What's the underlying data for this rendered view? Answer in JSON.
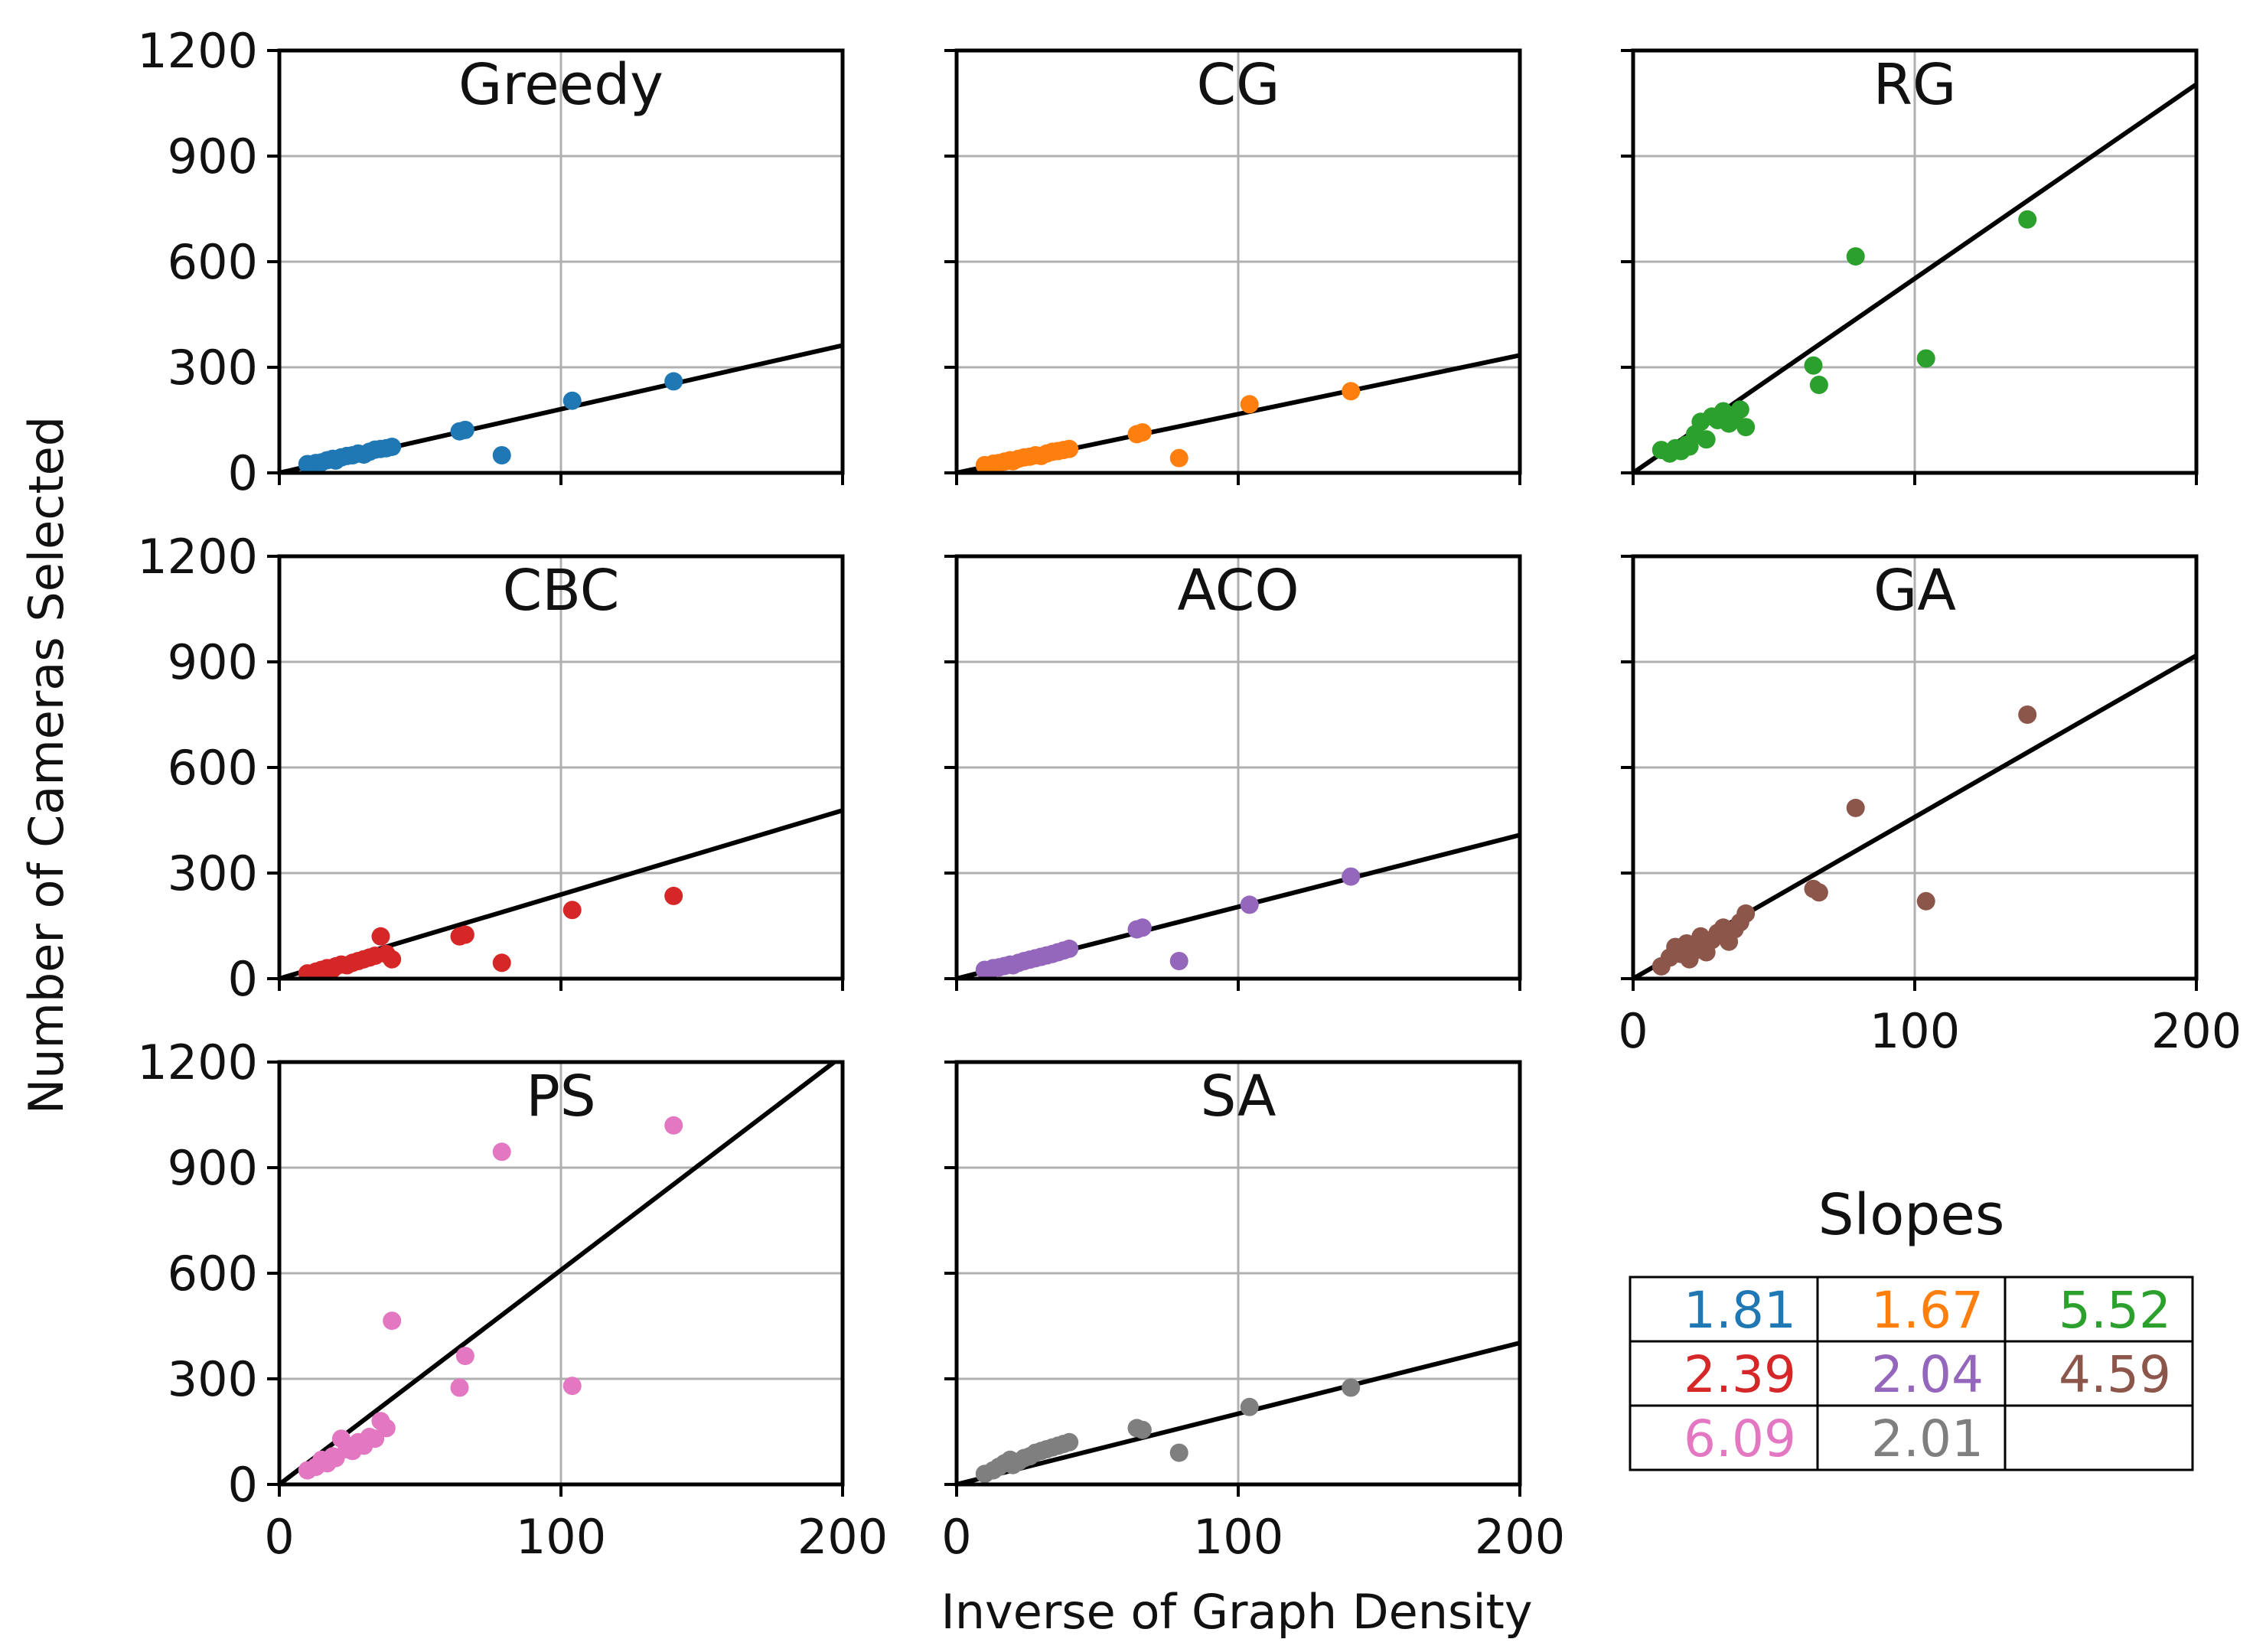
{
  "chart_data": {
    "type": "scatter",
    "ylabel": "Number of Cameras Selected",
    "xlabel": "Inverse of Graph Density",
    "xlim": [
      0,
      200
    ],
    "ylim": [
      0,
      1200
    ],
    "xticks": [
      0,
      100,
      200
    ],
    "yticks": [
      0,
      300,
      600,
      900,
      1200
    ],
    "xtick_labels": [
      "0",
      "100",
      "200"
    ],
    "ytick_labels": [
      "0",
      "300",
      "600",
      "900",
      "1200"
    ],
    "grid": true,
    "fit_line": {
      "color": "#000000",
      "intercept": 0
    },
    "panels": [
      {
        "title": "Greedy",
        "color": "#1f77b4",
        "slope": 1.81,
        "x": [
          10,
          13,
          15,
          17,
          19,
          20,
          22,
          24,
          26,
          28,
          30,
          32,
          34,
          36,
          38,
          40,
          64,
          66,
          79,
          104,
          140
        ],
        "y": [
          25,
          28,
          30,
          36,
          40,
          35,
          44,
          48,
          50,
          55,
          52,
          60,
          66,
          68,
          70,
          74,
          118,
          122,
          50,
          205,
          260
        ]
      },
      {
        "title": "CG",
        "color": "#ff7f0e",
        "slope": 1.67,
        "x": [
          10,
          13,
          15,
          17,
          19,
          20,
          22,
          24,
          26,
          28,
          30,
          32,
          34,
          36,
          38,
          40,
          64,
          66,
          79,
          104,
          140
        ],
        "y": [
          22,
          26,
          28,
          32,
          36,
          33,
          40,
          44,
          46,
          50,
          48,
          55,
          60,
          62,
          65,
          68,
          110,
          115,
          42,
          195,
          232
        ]
      },
      {
        "title": "RG",
        "color": "#2ca02c",
        "slope": 5.52,
        "x": [
          10,
          13,
          15,
          17,
          19,
          20,
          22,
          24,
          26,
          28,
          30,
          32,
          34,
          36,
          38,
          40,
          64,
          66,
          79,
          104,
          140
        ],
        "y": [
          65,
          55,
          70,
          62,
          80,
          75,
          110,
          145,
          95,
          160,
          150,
          175,
          140,
          165,
          180,
          130,
          305,
          250,
          615,
          325,
          720
        ]
      },
      {
        "title": "CBC",
        "color": "#d62728",
        "slope": 2.39,
        "x": [
          10,
          13,
          15,
          17,
          19,
          20,
          22,
          24,
          26,
          28,
          30,
          32,
          34,
          36,
          38,
          40,
          64,
          66,
          79,
          104,
          140
        ],
        "y": [
          15,
          20,
          25,
          30,
          28,
          35,
          40,
          38,
          45,
          50,
          55,
          60,
          65,
          120,
          70,
          55,
          120,
          125,
          45,
          195,
          235
        ]
      },
      {
        "title": "ACO",
        "color": "#9467bd",
        "slope": 2.04,
        "x": [
          10,
          13,
          15,
          17,
          19,
          20,
          22,
          24,
          26,
          28,
          30,
          32,
          34,
          36,
          38,
          40,
          64,
          66,
          79,
          104,
          140
        ],
        "y": [
          25,
          30,
          32,
          36,
          40,
          38,
          45,
          50,
          54,
          58,
          62,
          66,
          70,
          75,
          80,
          85,
          140,
          145,
          50,
          210,
          290
        ]
      },
      {
        "title": "GA",
        "color": "#8c564b",
        "slope": 4.59,
        "x": [
          10,
          13,
          15,
          17,
          19,
          20,
          22,
          24,
          26,
          28,
          30,
          32,
          34,
          36,
          38,
          40,
          64,
          66,
          79,
          104,
          140
        ],
        "y": [
          35,
          60,
          90,
          70,
          100,
          55,
          80,
          120,
          75,
          110,
          130,
          145,
          105,
          140,
          160,
          185,
          255,
          245,
          485,
          220,
          750
        ]
      },
      {
        "title": "PS",
        "color": "#e377c2",
        "slope": 6.09,
        "x": [
          10,
          13,
          15,
          17,
          19,
          20,
          22,
          24,
          26,
          28,
          30,
          32,
          34,
          36,
          38,
          40,
          64,
          66,
          79,
          104,
          140
        ],
        "y": [
          40,
          50,
          70,
          60,
          80,
          75,
          130,
          100,
          95,
          120,
          110,
          135,
          130,
          180,
          160,
          465,
          275,
          365,
          945,
          280,
          1020
        ]
      },
      {
        "title": "SA",
        "color": "#7f7f7f",
        "slope": 2.01,
        "x": [
          10,
          13,
          15,
          17,
          19,
          20,
          22,
          24,
          26,
          28,
          30,
          32,
          34,
          36,
          38,
          40,
          64,
          66,
          79,
          104,
          140
        ],
        "y": [
          30,
          40,
          50,
          60,
          70,
          55,
          65,
          75,
          80,
          90,
          95,
          100,
          105,
          110,
          115,
          120,
          160,
          155,
          90,
          220,
          275
        ]
      }
    ],
    "slopes_table": {
      "title": "Slopes",
      "rows": [
        [
          {
            "text": "1.81",
            "color": "#1f77b4"
          },
          {
            "text": "1.67",
            "color": "#ff7f0e"
          },
          {
            "text": "5.52",
            "color": "#2ca02c"
          }
        ],
        [
          {
            "text": "2.39",
            "color": "#d62728"
          },
          {
            "text": "2.04",
            "color": "#9467bd"
          },
          {
            "text": "4.59",
            "color": "#8c564b"
          }
        ],
        [
          {
            "text": "6.09",
            "color": "#e377c2"
          },
          {
            "text": "2.01",
            "color": "#7f7f7f"
          },
          {
            "text": "",
            "color": "#000000"
          }
        ]
      ]
    }
  }
}
